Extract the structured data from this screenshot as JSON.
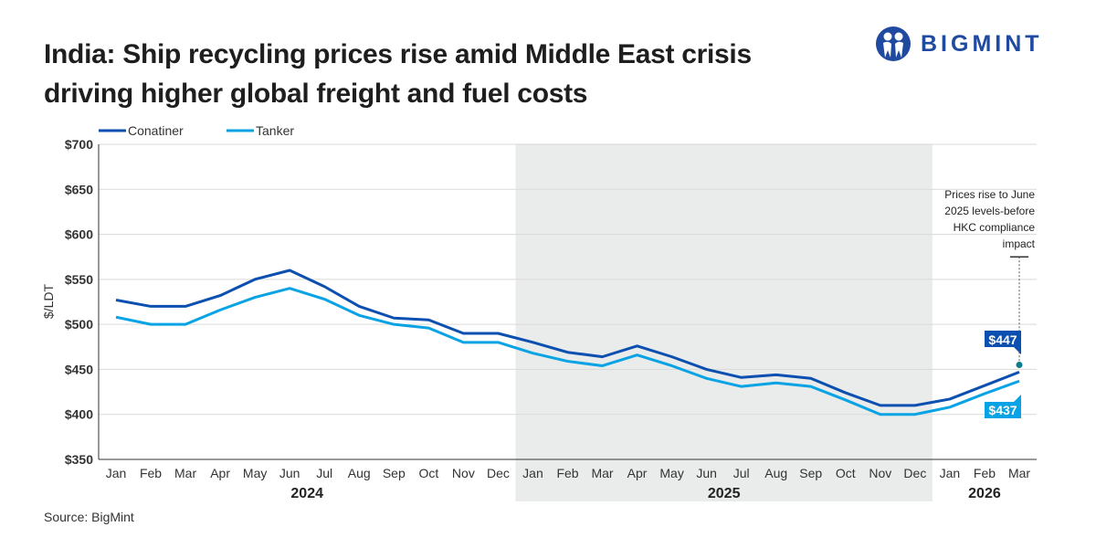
{
  "title": "India: Ship recycling prices rise amid Middle East crisis driving higher global freight and fuel costs",
  "logo_text": "BIGMINT",
  "source": "Source: BigMint",
  "chart_data": {
    "type": "line",
    "title": "India: Ship recycling prices rise amid Middle East crisis driving higher global freight and fuel costs",
    "ylabel": "$/LDT",
    "xlabel": "",
    "ylim": [
      350,
      700
    ],
    "yticks": [
      350,
      400,
      450,
      500,
      550,
      600,
      650,
      700
    ],
    "ytick_labels": [
      "$350",
      "$400",
      "$450",
      "$500",
      "$550",
      "$600",
      "$650",
      "$700"
    ],
    "grid": true,
    "legend_position": "top-left",
    "categories": [
      "Jan",
      "Feb",
      "Mar",
      "Apr",
      "May",
      "Jun",
      "Jul",
      "Aug",
      "Sep",
      "Oct",
      "Nov",
      "Dec",
      "Jan",
      "Feb",
      "Mar",
      "Apr",
      "May",
      "Jun",
      "Jul",
      "Aug",
      "Sep",
      "Oct",
      "Nov",
      "Dec",
      "Jan",
      "Feb",
      "Mar"
    ],
    "years": [
      {
        "label": "2024",
        "from": 0,
        "to": 11
      },
      {
        "label": "2025",
        "from": 12,
        "to": 23,
        "shaded": true
      },
      {
        "label": "2026",
        "from": 24,
        "to": 26
      }
    ],
    "series": [
      {
        "name": "Conatiner",
        "color": "#0b4fb0",
        "values": [
          527,
          520,
          520,
          532,
          550,
          560,
          542,
          520,
          507,
          505,
          490,
          490,
          480,
          469,
          464,
          476,
          464,
          450,
          441,
          444,
          440,
          424,
          410,
          410,
          417,
          432,
          447
        ],
        "end_label": "$447"
      },
      {
        "name": "Tanker",
        "color": "#08a3e4",
        "values": [
          508,
          500,
          500,
          516,
          530,
          540,
          528,
          510,
          500,
          496,
          480,
          480,
          468,
          459,
          454,
          466,
          454,
          440,
          431,
          435,
          431,
          416,
          400,
          400,
          408,
          423,
          437
        ],
        "end_label": "$437"
      }
    ],
    "annotation": {
      "text": [
        "Prices rise to June",
        "2025 levels-before",
        "HKC compliance",
        "impact"
      ],
      "point_value": 455,
      "top_value": 575,
      "index": 26,
      "color": "#0f7d8c"
    },
    "shade_color": "#eaeceb"
  }
}
